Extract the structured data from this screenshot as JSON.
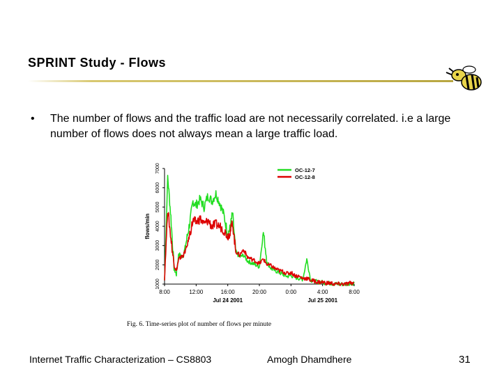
{
  "slide": {
    "title": "SPRINT Study - Flows",
    "bullet": "The number of flows and the traffic load are not necessarily correlated. i.e a large number of flows does not always mean a large traffic load.",
    "bullet_marker": "•"
  },
  "footer": {
    "left": "Internet Traffic Characterization – CS8803",
    "center": "Amogh Dhamdhere",
    "page": "31"
  },
  "colors": {
    "green": "#22dd22",
    "red": "#dd0000",
    "rule": "#c8b650"
  },
  "chart_data": {
    "type": "line",
    "ylabel": "flows/min",
    "caption": "Fig. 6.    Time-series plot of number of flows per minute",
    "yticks": [
      "1000",
      "2000",
      "3000",
      "4000",
      "5000",
      "6000",
      "7000"
    ],
    "ylim": [
      1000,
      7000
    ],
    "xticks": [
      "8:00",
      "12:00",
      "16:00",
      "20:00",
      "0:00",
      "4:00",
      "8:00"
    ],
    "xlim": [
      0,
      24
    ],
    "date_labels": [
      {
        "text": "Jul 24 2001",
        "x": 8
      },
      {
        "text": "Jul 25 2001",
        "x": 20
      }
    ],
    "series": [
      {
        "name": "OC-12-7",
        "color": "#22dd22",
        "x": [
          0,
          0.4,
          0.8,
          1.2,
          1.5,
          1.8,
          2.1,
          2.4,
          2.8,
          3.2,
          3.6,
          4,
          4.5,
          5,
          5.5,
          6,
          6.5,
          7,
          7.5,
          8,
          8.3,
          8.6,
          9,
          9.5,
          10,
          10.5,
          11,
          11.5,
          12,
          12.5,
          13,
          13.5,
          14,
          14.5,
          15,
          15.5,
          16,
          16.5,
          17,
          17.5,
          18,
          18.5,
          19,
          19.5,
          20,
          20.5,
          21,
          21.5,
          22,
          22.5,
          23,
          23.5,
          24
        ],
        "y": [
          1200,
          6600,
          4500,
          1800,
          1500,
          2600,
          2400,
          2500,
          3300,
          4200,
          5300,
          5100,
          5400,
          5000,
          5600,
          5300,
          5700,
          5200,
          4600,
          3600,
          3900,
          4700,
          2700,
          2400,
          2500,
          2200,
          2100,
          2000,
          1900,
          3700,
          2100,
          1800,
          1700,
          1600,
          1500,
          1400,
          1450,
          1350,
          1300,
          1250,
          2300,
          1200,
          1150,
          1100,
          1100,
          1050,
          1050,
          1000,
          1000,
          1000,
          1000,
          1050,
          1050
        ]
      },
      {
        "name": "OC-12-8",
        "color": "#dd0000",
        "x": [
          0,
          0.4,
          0.8,
          1.2,
          1.5,
          1.8,
          2.1,
          2.4,
          2.8,
          3.2,
          3.6,
          4,
          4.5,
          5,
          5.5,
          6,
          6.5,
          7,
          7.5,
          8,
          8.3,
          8.6,
          9,
          9.5,
          10,
          10.5,
          11,
          11.5,
          12,
          12.5,
          13,
          13.5,
          14,
          14.5,
          15,
          15.5,
          16,
          16.5,
          17,
          17.5,
          18,
          18.5,
          19,
          19.5,
          20,
          20.5,
          21,
          21.5,
          22,
          22.5,
          23,
          23.5,
          24
        ],
        "y": [
          1300,
          4900,
          3400,
          2000,
          1700,
          2300,
          2400,
          2500,
          2900,
          3600,
          4300,
          4200,
          4400,
          4100,
          4300,
          4000,
          4100,
          4000,
          3800,
          3500,
          3700,
          4200,
          2700,
          2500,
          2800,
          2400,
          2300,
          2200,
          2050,
          2300,
          2000,
          1950,
          1800,
          1700,
          1650,
          1550,
          1600,
          1450,
          1400,
          1300,
          1300,
          1200,
          1150,
          1100,
          1100,
          1050,
          1050,
          1000,
          1000,
          1000,
          1000,
          1050,
          1050
        ]
      }
    ]
  }
}
